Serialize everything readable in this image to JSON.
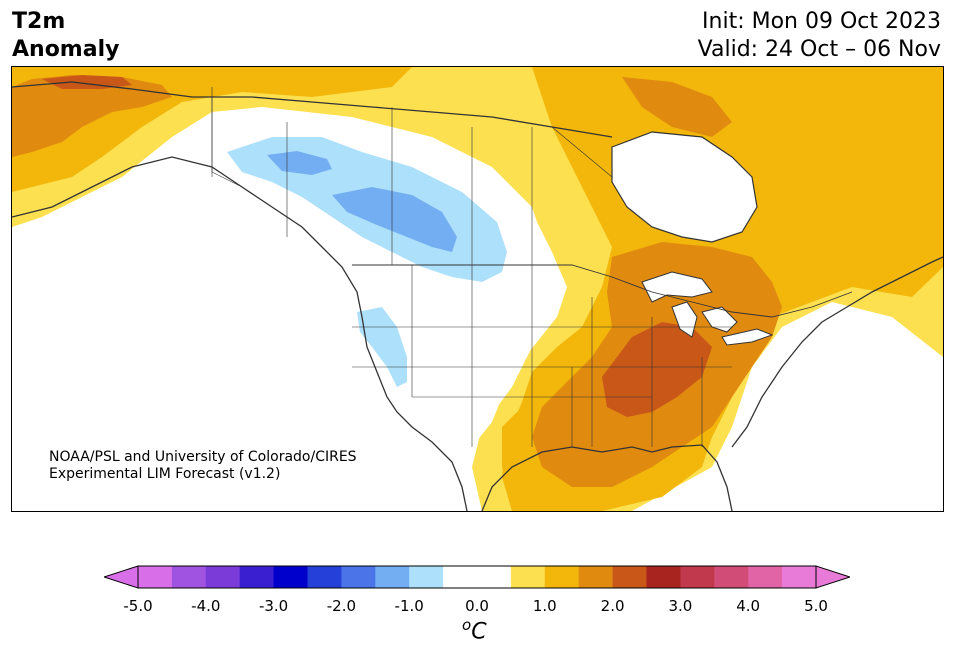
{
  "header": {
    "variable": "T2m",
    "field": "Anomaly",
    "init": "Init: Mon 09 Oct 2023",
    "valid": "Valid: 24 Oct – 06 Nov"
  },
  "credit": {
    "line1": "NOAA/PSL and University of Colorado/CIRES",
    "line2": "Experimental LIM Forecast (v1.2)"
  },
  "colorbar": {
    "unit_base": "C",
    "unit_super": "o",
    "ticks": [
      "-5.0",
      "-4.0",
      "-3.0",
      "-2.0",
      "-1.0",
      "0.0",
      "1.0",
      "2.0",
      "3.0",
      "4.0",
      "5.0"
    ],
    "colors": [
      "#d86fe8",
      "#a052e0",
      "#7a3bd8",
      "#3a1fd0",
      "#0000cc",
      "#2440d8",
      "#4a74e8",
      "#74aef2",
      "#ade0fb",
      "#ffffff",
      "#ffffff",
      "#fde050",
      "#f2b70a",
      "#e08a10",
      "#c85718",
      "#a8241e",
      "#c0394c",
      "#d24c78",
      "#e064a6",
      "#e87ad8"
    ],
    "under_color": "#d86fe8",
    "over_color": "#e87ad8"
  },
  "map": {
    "region": "North America",
    "palette": {
      "land": "#ffffff",
      "yellow": "#fde050",
      "gold": "#f2b70a",
      "orange": "#e08a10",
      "dark_orange": "#c85718",
      "light_blue": "#ade0fb",
      "blue": "#74aef2",
      "border": "#333333"
    }
  }
}
